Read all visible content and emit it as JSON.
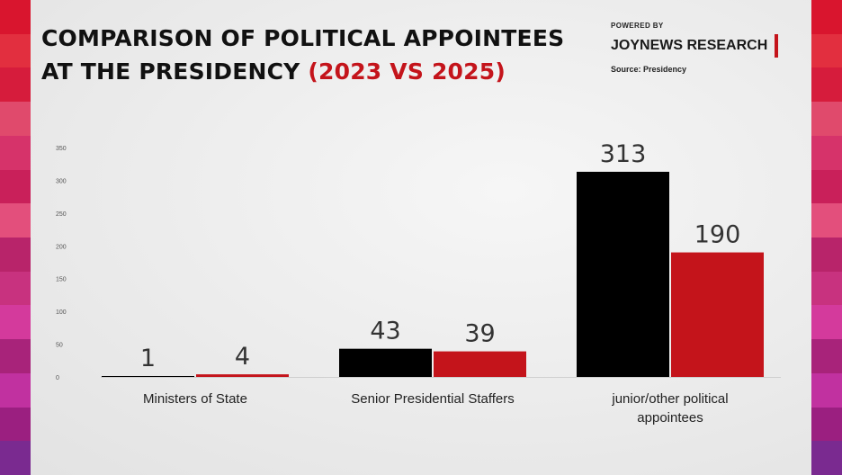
{
  "header": {
    "title_line1": "COMPARISON OF POLITICAL APPOINTEES",
    "title_line2": "AT THE PRESIDENCY",
    "title_accent": "(2023 VS 2025)"
  },
  "brand": {
    "powered_by": "POWERED BY",
    "name": "JOYNEWS RESEARCH",
    "source": "Source: Presidency"
  },
  "colors": {
    "series_2023": "#000000",
    "series_2025": "#c4141b",
    "accent": "#c4141b",
    "stripe_colors": [
      "#d9152e",
      "#e22f3f",
      "#d61c3c",
      "#e04a6c",
      "#d6336a",
      "#c9205a",
      "#e34f7c",
      "#b8246a",
      "#c8327f",
      "#d43a9c",
      "#a8237a",
      "#c131a0",
      "#9b1f80",
      "#7a2a90"
    ]
  },
  "chart_data": {
    "type": "bar",
    "categories": [
      [
        "Ministers of State"
      ],
      [
        "Senior Presidential Staffers"
      ],
      [
        "junior/other political",
        "appointees"
      ]
    ],
    "series": [
      {
        "values": [
          1,
          43,
          313
        ]
      },
      {
        "values": [
          4,
          39,
          190
        ]
      }
    ],
    "ylim": [
      0,
      350
    ],
    "yticks": [
      0,
      50,
      100,
      150,
      200,
      250,
      300,
      350
    ],
    "data_labels": true,
    "grid": false
  }
}
